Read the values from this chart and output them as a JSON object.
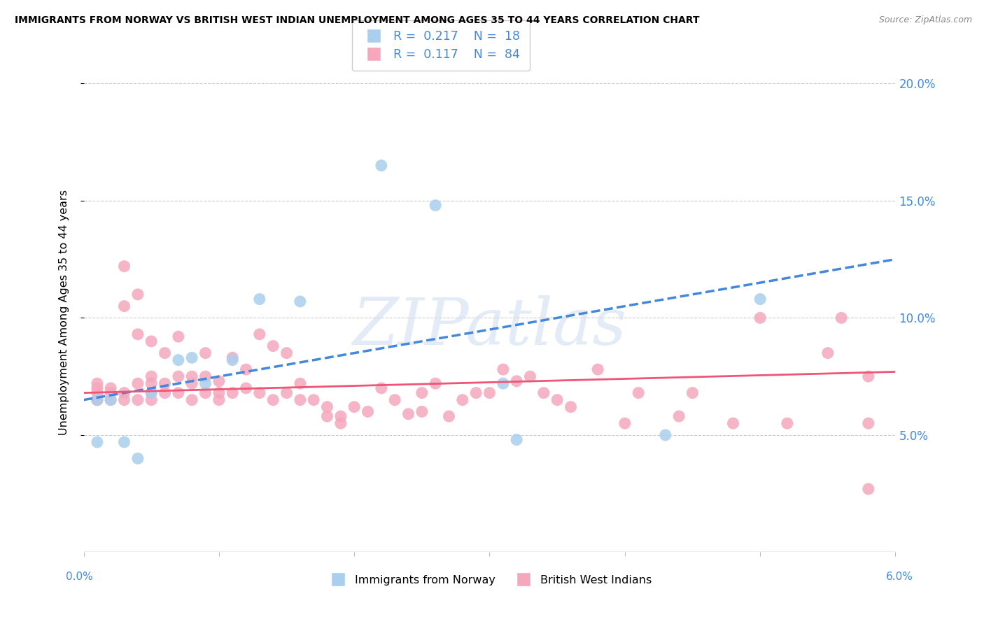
{
  "title": "IMMIGRANTS FROM NORWAY VS BRITISH WEST INDIAN UNEMPLOYMENT AMONG AGES 35 TO 44 YEARS CORRELATION CHART",
  "source": "Source: ZipAtlas.com",
  "ylabel": "Unemployment Among Ages 35 to 44 years",
  "xmin": 0.0,
  "xmax": 0.06,
  "ymin": 0.0,
  "ymax": 0.205,
  "yticks": [
    0.05,
    0.1,
    0.15,
    0.2
  ],
  "ytick_labels": [
    "5.0%",
    "10.0%",
    "15.0%",
    "20.0%"
  ],
  "norway_R": 0.217,
  "norway_N": 18,
  "bwi_R": 0.117,
  "bwi_N": 84,
  "norway_scatter_color": "#aacfee",
  "bwi_scatter_color": "#f5a8bc",
  "norway_line_color": "#4488dd",
  "bwi_line_color": "#ee5577",
  "legend_label_norway": "Immigrants from Norway",
  "legend_label_bwi": "British West Indians",
  "watermark_text": "ZIPatlas",
  "norway_x": [
    0.001,
    0.001,
    0.002,
    0.003,
    0.004,
    0.005,
    0.007,
    0.008,
    0.009,
    0.011,
    0.013,
    0.016,
    0.022,
    0.026,
    0.031,
    0.032,
    0.043,
    0.05
  ],
  "norway_y": [
    0.065,
    0.047,
    0.065,
    0.047,
    0.04,
    0.068,
    0.082,
    0.083,
    0.072,
    0.082,
    0.108,
    0.107,
    0.165,
    0.148,
    0.072,
    0.048,
    0.05,
    0.108
  ],
  "bwi_x": [
    0.001,
    0.001,
    0.001,
    0.001,
    0.001,
    0.002,
    0.002,
    0.002,
    0.003,
    0.003,
    0.003,
    0.003,
    0.004,
    0.004,
    0.004,
    0.004,
    0.005,
    0.005,
    0.005,
    0.005,
    0.005,
    0.006,
    0.006,
    0.006,
    0.007,
    0.007,
    0.007,
    0.008,
    0.008,
    0.008,
    0.009,
    0.009,
    0.009,
    0.01,
    0.01,
    0.01,
    0.011,
    0.011,
    0.012,
    0.012,
    0.013,
    0.013,
    0.014,
    0.014,
    0.015,
    0.015,
    0.016,
    0.016,
    0.017,
    0.018,
    0.018,
    0.019,
    0.019,
    0.02,
    0.021,
    0.022,
    0.023,
    0.024,
    0.025,
    0.025,
    0.026,
    0.027,
    0.028,
    0.029,
    0.03,
    0.031,
    0.032,
    0.033,
    0.034,
    0.035,
    0.036,
    0.038,
    0.04,
    0.041,
    0.044,
    0.045,
    0.048,
    0.05,
    0.052,
    0.055,
    0.056,
    0.058,
    0.058,
    0.058
  ],
  "bwi_y": [
    0.065,
    0.07,
    0.072,
    0.068,
    0.065,
    0.068,
    0.065,
    0.07,
    0.122,
    0.105,
    0.068,
    0.065,
    0.11,
    0.093,
    0.072,
    0.065,
    0.09,
    0.075,
    0.072,
    0.068,
    0.065,
    0.085,
    0.072,
    0.068,
    0.092,
    0.075,
    0.068,
    0.075,
    0.072,
    0.065,
    0.085,
    0.075,
    0.068,
    0.073,
    0.068,
    0.065,
    0.083,
    0.068,
    0.078,
    0.07,
    0.093,
    0.068,
    0.088,
    0.065,
    0.085,
    0.068,
    0.072,
    0.065,
    0.065,
    0.062,
    0.058,
    0.058,
    0.055,
    0.062,
    0.06,
    0.07,
    0.065,
    0.059,
    0.068,
    0.06,
    0.072,
    0.058,
    0.065,
    0.068,
    0.068,
    0.078,
    0.073,
    0.075,
    0.068,
    0.065,
    0.062,
    0.078,
    0.055,
    0.068,
    0.058,
    0.068,
    0.055,
    0.1,
    0.055,
    0.085,
    0.1,
    0.055,
    0.075,
    0.027
  ]
}
